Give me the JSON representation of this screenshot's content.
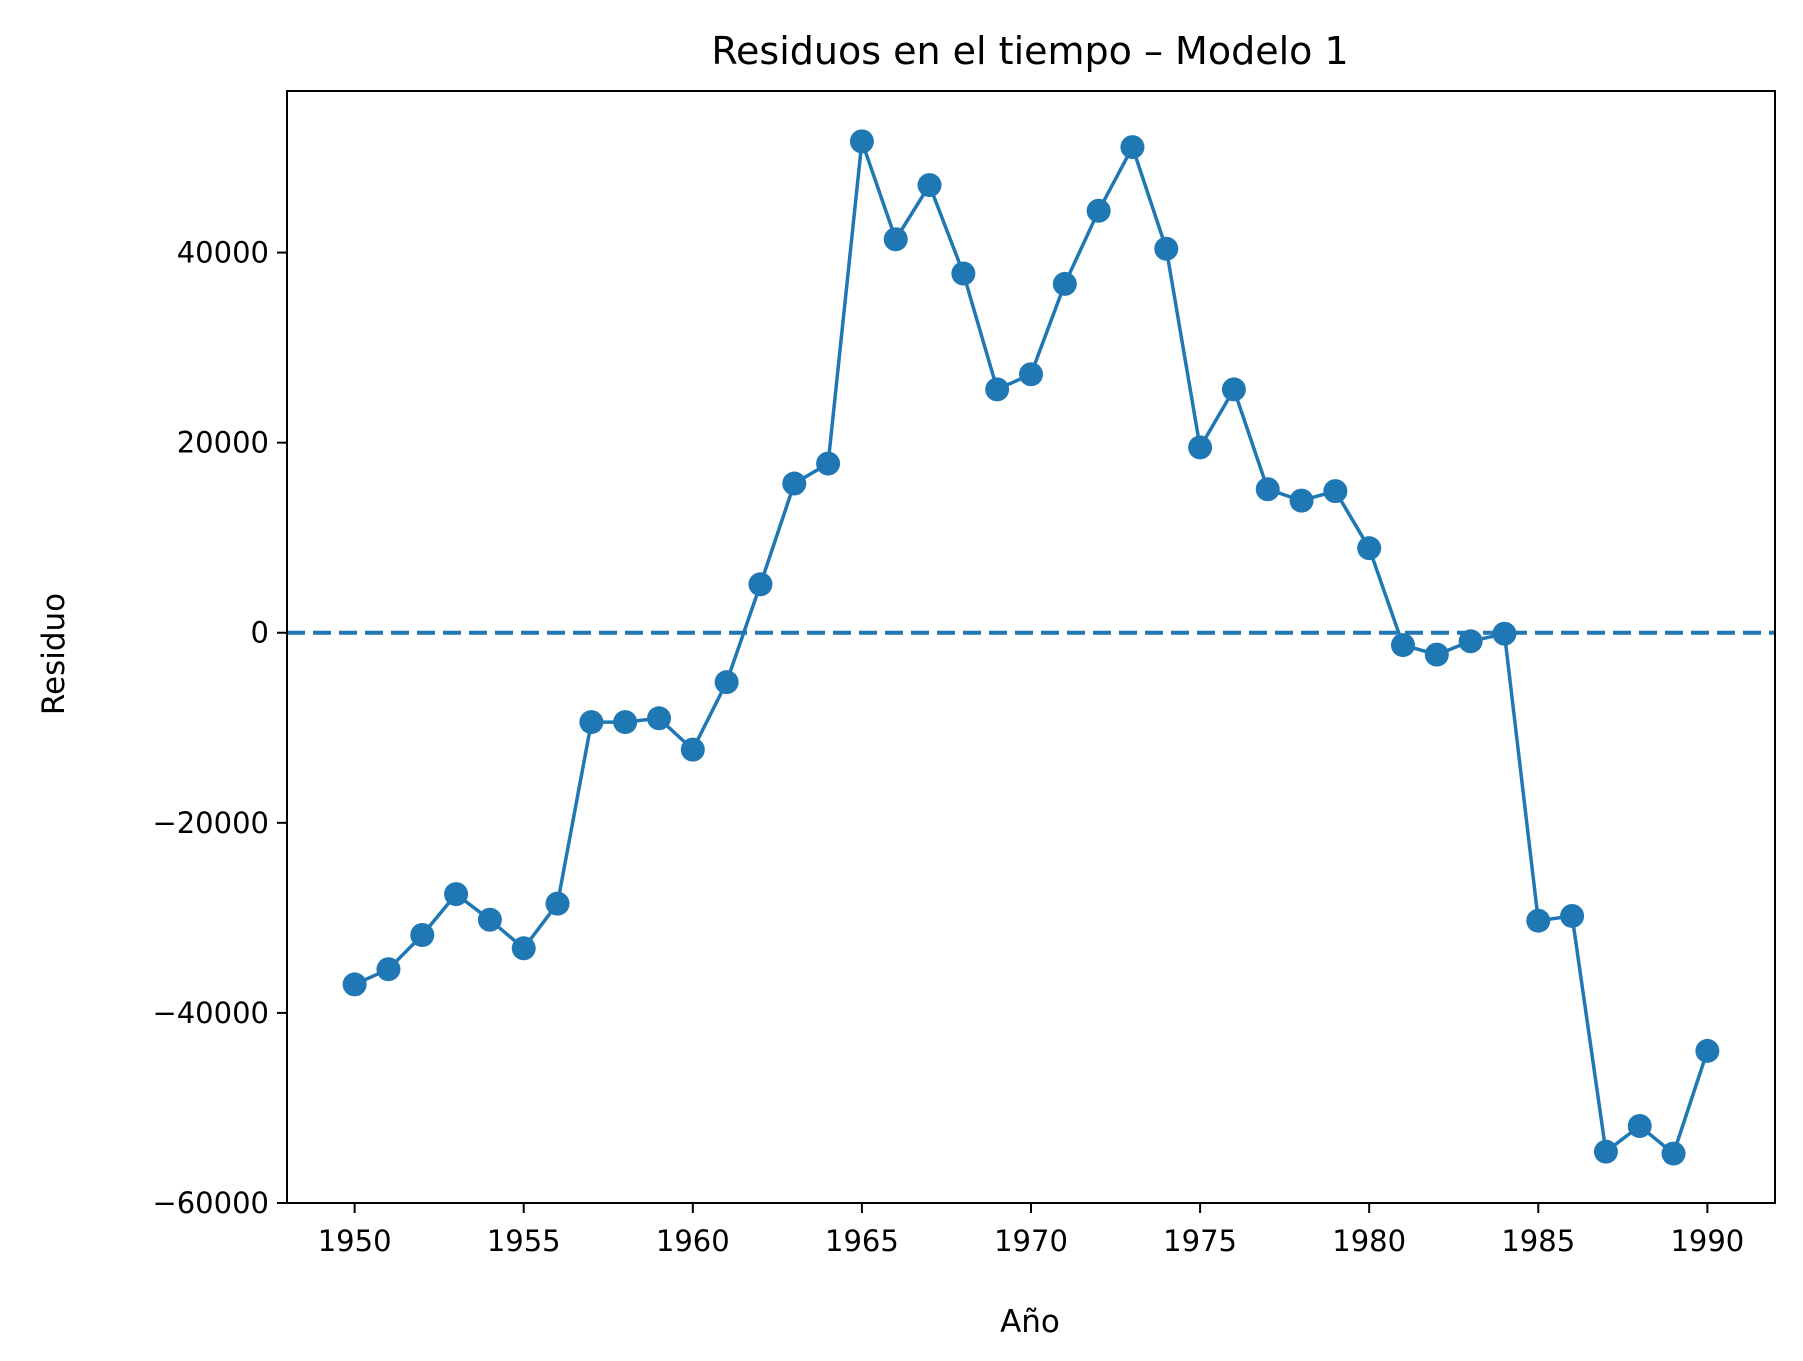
{
  "chart_data": {
    "type": "line",
    "title": "Residuos en el tiempo – Modelo 1",
    "xlabel": "Año",
    "ylabel": "Residuo",
    "xlim": [
      1948,
      1992
    ],
    "ylim": [
      -60000,
      57000
    ],
    "xticks": [
      1950,
      1955,
      1960,
      1965,
      1970,
      1975,
      1980,
      1985,
      1990
    ],
    "xtick_labels": [
      "1950",
      "1955",
      "1960",
      "1965",
      "1970",
      "1975",
      "1980",
      "1985",
      "1990"
    ],
    "yticks": [
      -60000,
      -40000,
      -20000,
      0,
      20000,
      40000
    ],
    "ytick_labels": [
      "−60000",
      "−40000",
      "−20000",
      "0",
      "20000",
      "40000"
    ],
    "grid": false,
    "reference_line": {
      "y": 0,
      "style": "dashed"
    },
    "series": [
      {
        "color": "#1f77b4",
        "marker": "circle",
        "x": [
          1950,
          1951,
          1952,
          1953,
          1954,
          1955,
          1956,
          1957,
          1958,
          1959,
          1960,
          1961,
          1962,
          1963,
          1964,
          1965,
          1966,
          1967,
          1968,
          1969,
          1970,
          1971,
          1972,
          1973,
          1974,
          1975,
          1976,
          1977,
          1978,
          1979,
          1980,
          1981,
          1982,
          1983,
          1984,
          1985,
          1986,
          1987,
          1988,
          1989,
          1990
        ],
        "y": [
          -37000,
          -35400,
          -31800,
          -27500,
          -30200,
          -33200,
          -28500,
          -9400,
          -9400,
          -9000,
          -12300,
          -5200,
          5100,
          15700,
          17800,
          51700,
          41400,
          47100,
          37800,
          25600,
          27200,
          36700,
          44400,
          51100,
          40400,
          19500,
          25600,
          15100,
          13900,
          14900,
          8900,
          -1300,
          -2300,
          -900,
          -100,
          -30300,
          -29800,
          -54600,
          -51900,
          -54800,
          -44000
        ]
      }
    ]
  }
}
